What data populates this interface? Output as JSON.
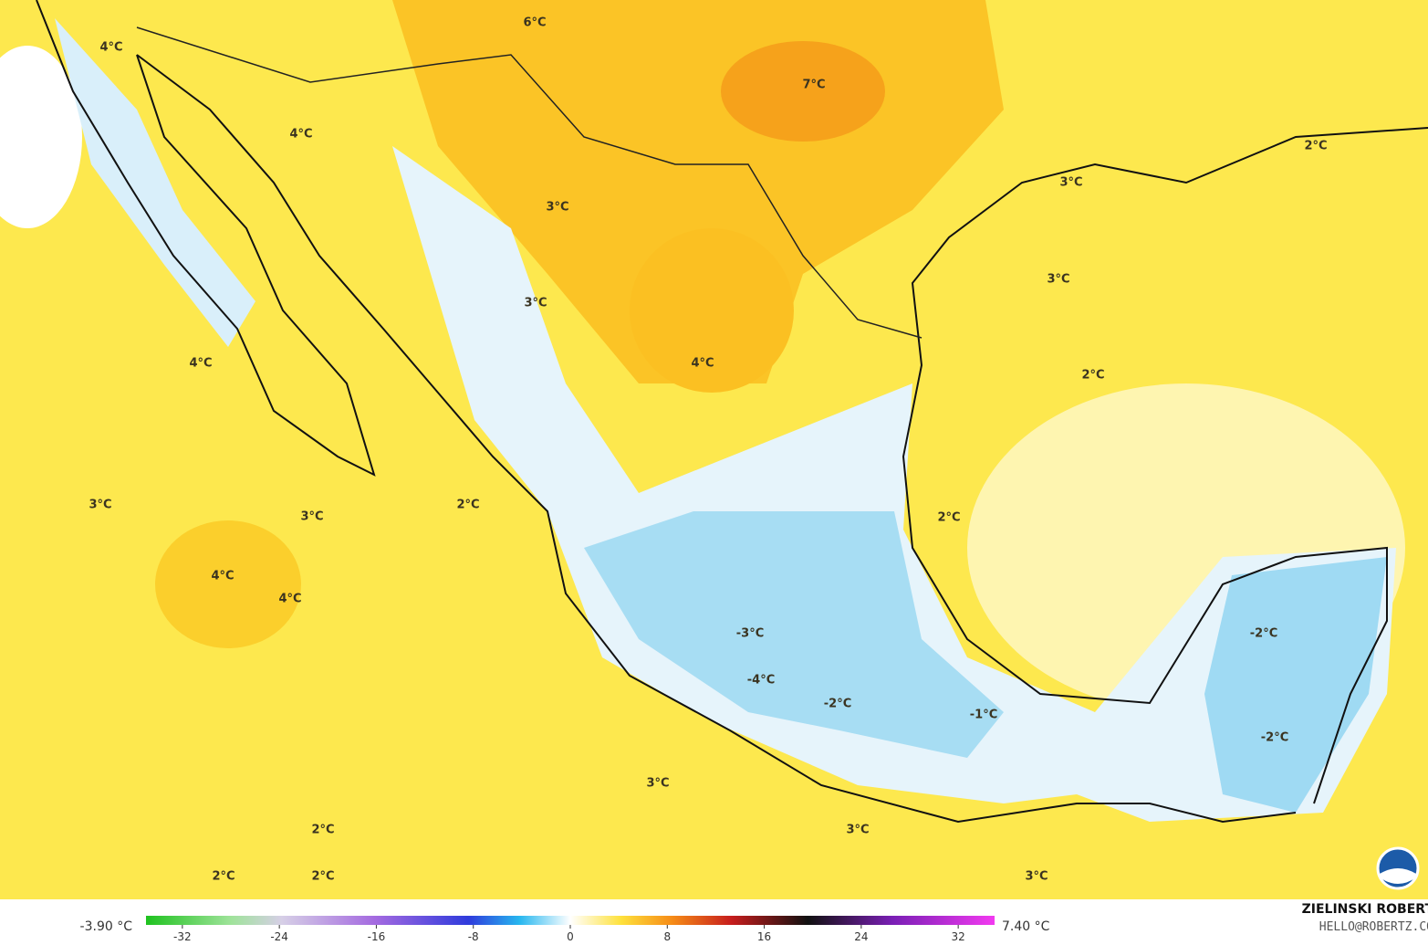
{
  "map": {
    "labels": [
      "6°C",
      "4°C",
      "7°C",
      "4°C",
      "2°C",
      "3°C",
      "3°C",
      "3°C",
      "3°C",
      "4°C",
      "4°C",
      "2°C",
      "3°C",
      "2°C",
      "3°C",
      "2°C",
      "4°C",
      "4°C",
      "-2°C",
      "-3°C",
      "-4°C",
      "-2°C",
      "-1°C",
      "-2°C",
      "3°C",
      "2°C",
      "3°C",
      "2°C",
      "2°C",
      "3°C"
    ]
  },
  "colorbar": {
    "min_label": "-3.90 °C",
    "max_label": "7.40 °C",
    "lim": [
      -35,
      35
    ],
    "ticks": [
      -32,
      -24,
      -16,
      -8,
      0,
      8,
      16,
      24,
      32
    ]
  },
  "credit": {
    "name": "ZIELINSKI ROBERT",
    "email": "HELLO@ROBERTZ.CO"
  }
}
